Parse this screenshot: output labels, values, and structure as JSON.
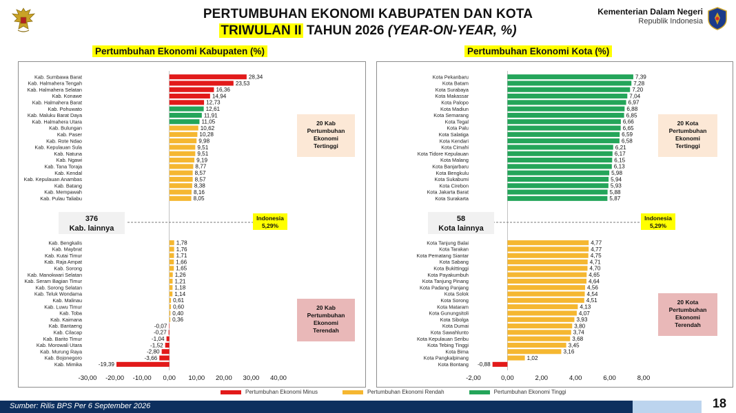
{
  "header": {
    "title_line1": "PERTUMBUHAN EKONOMI KABUPATEN DAN KOTA",
    "title_line2_highlight": "TRIWULAN II",
    "title_line2_mid": " TAHUN 2026 ",
    "title_line2_italic": "(YEAR-ON-YEAR, %)",
    "ministry_name": "Kementerian Dalam Negeri",
    "ministry_sub": "Republik Indonesia"
  },
  "legend": {
    "minus": "Pertumbuhan Ekonomi Minus",
    "rendah": "Pertumbuhan Ekonomi Rendah",
    "tinggi": "Pertumbuhan Ekonomi Tinggi"
  },
  "colors": {
    "minus": "#e21a1a",
    "rendah": "#f5b731",
    "tinggi": "#24a55a",
    "box_top": "#fce8d6",
    "box_bottom": "#e9b8b8",
    "footer": "#0d2f5e"
  },
  "footer": {
    "source": "Sumber: Rilis BPS Per 6 September 2026",
    "page": "18"
  },
  "chart_data": [
    {
      "type": "bar",
      "title": "Pertumbuhan Ekonomi Kabupaten (%)",
      "xlim": [
        -30,
        40
      ],
      "xticks": [
        "-30,00",
        "-20,00",
        "-10,00",
        "0,00",
        "10,00",
        "20,00",
        "30,00",
        "40,00"
      ],
      "xtick_values": [
        -30,
        -20,
        -10,
        0,
        10,
        20,
        30,
        40
      ],
      "indonesia_value": 5.29,
      "indonesia_label": [
        "Indonesia",
        "5,29%"
      ],
      "others_label": [
        "376",
        "Kab. lainnya"
      ],
      "top_box": [
        "20 Kab",
        "Pertumbuhan",
        "Ekonomi",
        "Tertinggi"
      ],
      "bottom_box": [
        "20 Kab",
        "Pertumbuhan",
        "Ekonomi",
        "Terendah"
      ],
      "top": [
        {
          "name": "Kab. Sumbawa Barat",
          "value": 28.34,
          "label": "28,34",
          "cat": "minus"
        },
        {
          "name": "Kab. Halmahera Tengah",
          "value": 23.53,
          "label": "23,53",
          "cat": "minus"
        },
        {
          "name": "Kab. Halmahera Selatan",
          "value": 16.36,
          "label": "16,36",
          "cat": "minus"
        },
        {
          "name": "Kab. Konawe",
          "value": 14.94,
          "label": "14,94",
          "cat": "minus"
        },
        {
          "name": "Kab. Halmahera Barat",
          "value": 12.73,
          "label": "12,73",
          "cat": "minus"
        },
        {
          "name": "Kab. Pohuwato",
          "value": 12.61,
          "label": "12,61",
          "cat": "tinggi"
        },
        {
          "name": "Kab. Maluku Barat Daya",
          "value": 11.91,
          "label": "11,91",
          "cat": "tinggi"
        },
        {
          "name": "Kab. Halmahera Utara",
          "value": 11.05,
          "label": "11,05",
          "cat": "tinggi"
        },
        {
          "name": "Kab. Bulungan",
          "value": 10.62,
          "label": "10,62",
          "cat": "rendah"
        },
        {
          "name": "Kab. Paser",
          "value": 10.28,
          "label": "10,28",
          "cat": "rendah"
        },
        {
          "name": "Kab. Rote Ndao",
          "value": 9.98,
          "label": "9,98",
          "cat": "rendah"
        },
        {
          "name": "Kab. Kepulauan Sula",
          "value": 9.51,
          "label": "9,51",
          "cat": "rendah"
        },
        {
          "name": "Kab. Natuna",
          "value": 9.51,
          "label": "9,51",
          "cat": "rendah"
        },
        {
          "name": "Kab. Ngawi",
          "value": 9.19,
          "label": "9,19",
          "cat": "rendah"
        },
        {
          "name": "Kab. Tana Toraja",
          "value": 8.77,
          "label": "8,77",
          "cat": "rendah"
        },
        {
          "name": "Kab. Kendal",
          "value": 8.57,
          "label": "8,57",
          "cat": "rendah"
        },
        {
          "name": "Kab. Kepulauan Anambas",
          "value": 8.57,
          "label": "8,57",
          "cat": "rendah"
        },
        {
          "name": "Kab. Batang",
          "value": 8.38,
          "label": "8,38",
          "cat": "rendah"
        },
        {
          "name": "Kab. Mempawah",
          "value": 8.16,
          "label": "8,16",
          "cat": "rendah"
        },
        {
          "name": "Kab. Pulau Taliabu",
          "value": 8.05,
          "label": "8,05",
          "cat": "rendah"
        }
      ],
      "bottom": [
        {
          "name": "Kab. Bengkalis",
          "value": 1.78,
          "label": "1,78",
          "cat": "rendah"
        },
        {
          "name": "Kab. Maybrat",
          "value": 1.76,
          "label": "1,76",
          "cat": "rendah"
        },
        {
          "name": "Kab. Kutai Timur",
          "value": 1.71,
          "label": "1,71",
          "cat": "rendah"
        },
        {
          "name": "Kab. Raja Ampat",
          "value": 1.66,
          "label": "1,66",
          "cat": "rendah"
        },
        {
          "name": "Kab. Sorong",
          "value": 1.65,
          "label": "1,65",
          "cat": "rendah"
        },
        {
          "name": "Kab. Manokwari Selatan",
          "value": 1.26,
          "label": "1,26",
          "cat": "rendah"
        },
        {
          "name": "Kab. Seram Bagian Timur",
          "value": 1.21,
          "label": "1,21",
          "cat": "rendah"
        },
        {
          "name": "Kab. Sorong Selatan",
          "value": 1.18,
          "label": "1,18",
          "cat": "rendah"
        },
        {
          "name": "Kab. Teluk Wondama",
          "value": 1.14,
          "label": "1,14",
          "cat": "rendah"
        },
        {
          "name": "Kab. Malinau",
          "value": 0.61,
          "label": "0,61",
          "cat": "rendah"
        },
        {
          "name": "Kab. Luwu Timur",
          "value": 0.6,
          "label": "0,60",
          "cat": "rendah"
        },
        {
          "name": "Kab. Toba",
          "value": 0.4,
          "label": "0,40",
          "cat": "rendah"
        },
        {
          "name": "Kab. Kaimana",
          "value": 0.36,
          "label": "0,36",
          "cat": "rendah"
        },
        {
          "name": "Kab. Bantaeng",
          "value": -0.07,
          "label": "-0,07",
          "cat": "minus"
        },
        {
          "name": "Kab. Cilacap",
          "value": -0.27,
          "label": "-0,27",
          "cat": "minus"
        },
        {
          "name": "Kab. Barito Timur",
          "value": -1.04,
          "label": "-1,04",
          "cat": "minus"
        },
        {
          "name": "Kab. Morowali Utara",
          "value": -1.52,
          "label": "-1,52",
          "cat": "minus"
        },
        {
          "name": "Kab. Murung Raya",
          "value": -2.8,
          "label": "-2,80",
          "cat": "minus"
        },
        {
          "name": "Kab. Bojonegoro",
          "value": -3.66,
          "label": "-3,66",
          "cat": "minus"
        },
        {
          "name": "Kab. Mimika",
          "value": -19.39,
          "label": "-19,39",
          "cat": "minus"
        }
      ]
    },
    {
      "type": "bar",
      "title": "Pertumbuhan Ekonomi Kota (%)",
      "xlim": [
        -2,
        8
      ],
      "xticks": [
        "-2,00",
        "0,00",
        "2,00",
        "4,00",
        "6,00",
        "8,00"
      ],
      "xtick_values": [
        -2,
        0,
        2,
        4,
        6,
        8
      ],
      "indonesia_value": 5.29,
      "indonesia_label": [
        "Indonesia",
        "5,29%"
      ],
      "others_label": [
        "58",
        "Kota lainnya"
      ],
      "top_box": [
        "20 Kota",
        "Pertumbuhan",
        "Ekonomi",
        "Tertinggi"
      ],
      "bottom_box": [
        "20 Kota",
        "Pertumbuhan",
        "Ekonomi",
        "Terendah"
      ],
      "top": [
        {
          "name": "Kota Pekanbaru",
          "value": 7.39,
          "label": "7,39",
          "cat": "tinggi"
        },
        {
          "name": "Kota Batam",
          "value": 7.28,
          "label": "7,28",
          "cat": "tinggi"
        },
        {
          "name": "Kota Surabaya",
          "value": 7.2,
          "label": "7,20",
          "cat": "tinggi"
        },
        {
          "name": "Kota Makassar",
          "value": 7.04,
          "label": "7,04",
          "cat": "tinggi"
        },
        {
          "name": "Kota Palopo",
          "value": 6.97,
          "label": "6,97",
          "cat": "tinggi"
        },
        {
          "name": "Kota Madiun",
          "value": 6.88,
          "label": "6,88",
          "cat": "tinggi"
        },
        {
          "name": "Kota Semarang",
          "value": 6.85,
          "label": "6,85",
          "cat": "tinggi"
        },
        {
          "name": "Kota Tegal",
          "value": 6.66,
          "label": "6,66",
          "cat": "tinggi"
        },
        {
          "name": "Kota Palu",
          "value": 6.65,
          "label": "6,65",
          "cat": "tinggi"
        },
        {
          "name": "Kota Salatiga",
          "value": 6.59,
          "label": "6,59",
          "cat": "tinggi"
        },
        {
          "name": "Kota Kendari",
          "value": 6.58,
          "label": "6,58",
          "cat": "tinggi"
        },
        {
          "name": "Kota Cimahi",
          "value": 6.21,
          "label": "6,21",
          "cat": "tinggi"
        },
        {
          "name": "Kota Tidore Kepulauan",
          "value": 6.17,
          "label": "6,17",
          "cat": "tinggi"
        },
        {
          "name": "Kota Malang",
          "value": 6.15,
          "label": "6,15",
          "cat": "tinggi"
        },
        {
          "name": "Kota Banjarbaru",
          "value": 6.13,
          "label": "6,13",
          "cat": "tinggi"
        },
        {
          "name": "Kota Bengkulu",
          "value": 5.98,
          "label": "5,98",
          "cat": "tinggi"
        },
        {
          "name": "Kota Sukabumi",
          "value": 5.94,
          "label": "5,94",
          "cat": "tinggi"
        },
        {
          "name": "Kota Cirebon",
          "value": 5.93,
          "label": "5,93",
          "cat": "tinggi"
        },
        {
          "name": "Kota Jakarta Barat",
          "value": 5.88,
          "label": "5,88",
          "cat": "tinggi"
        },
        {
          "name": "Kota Surakarta",
          "value": 5.87,
          "label": "5,87",
          "cat": "tinggi"
        }
      ],
      "bottom": [
        {
          "name": "Kota Tanjung Balai",
          "value": 4.77,
          "label": "4,77",
          "cat": "rendah"
        },
        {
          "name": "Kota Tarakan",
          "value": 4.77,
          "label": "4,77",
          "cat": "rendah"
        },
        {
          "name": "Kota Pematang Siantar",
          "value": 4.75,
          "label": "4,75",
          "cat": "rendah"
        },
        {
          "name": "Kota Sabang",
          "value": 4.71,
          "label": "4,71",
          "cat": "rendah"
        },
        {
          "name": "Kota Bukittinggi",
          "value": 4.7,
          "label": "4,70",
          "cat": "rendah"
        },
        {
          "name": "Kota Payakumbuh",
          "value": 4.65,
          "label": "4,65",
          "cat": "rendah"
        },
        {
          "name": "Kota Tanjung Pinang",
          "value": 4.64,
          "label": "4,64",
          "cat": "rendah"
        },
        {
          "name": "Kota Padang Panjang",
          "value": 4.56,
          "label": "4,56",
          "cat": "rendah"
        },
        {
          "name": "Kota Solok",
          "value": 4.54,
          "label": "4,54",
          "cat": "rendah"
        },
        {
          "name": "Kota Sorong",
          "value": 4.51,
          "label": "4,51",
          "cat": "rendah"
        },
        {
          "name": "Kota Mataram",
          "value": 4.13,
          "label": "4,13",
          "cat": "rendah"
        },
        {
          "name": "Kota Gunungsitoli",
          "value": 4.07,
          "label": "4,07",
          "cat": "rendah"
        },
        {
          "name": "Kota Sibolga",
          "value": 3.93,
          "label": "3,93",
          "cat": "rendah"
        },
        {
          "name": "Kota Dumai",
          "value": 3.8,
          "label": "3,80",
          "cat": "rendah"
        },
        {
          "name": "Kota Sawahlunto",
          "value": 3.74,
          "label": "3,74",
          "cat": "rendah"
        },
        {
          "name": "Kota Kepulauan Seribu",
          "value": 3.68,
          "label": "3,68",
          "cat": "rendah"
        },
        {
          "name": "Kota Tebing Tinggi",
          "value": 3.45,
          "label": "3,45",
          "cat": "rendah"
        },
        {
          "name": "Kota Bima",
          "value": 3.16,
          "label": "3,16",
          "cat": "rendah"
        },
        {
          "name": "Kota Pangkalpinang",
          "value": 1.02,
          "label": "1,02",
          "cat": "rendah"
        },
        {
          "name": "Kota Bontang",
          "value": -0.88,
          "label": "-0,88",
          "cat": "minus"
        }
      ]
    }
  ]
}
